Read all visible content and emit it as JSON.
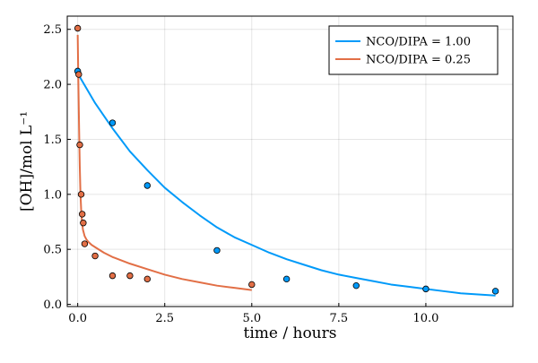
{
  "chart_data": {
    "type": "scatter",
    "xlabel": "time / hours",
    "ylabel": "[OH]/mol L⁻¹",
    "xlim": [
      -0.3,
      12.5
    ],
    "ylim": [
      -0.02,
      2.62
    ],
    "xticks": [
      0.0,
      2.5,
      5.0,
      7.5,
      10.0
    ],
    "xtick_labels": [
      "0.0",
      "2.5",
      "5.0",
      "7.5",
      "10.0"
    ],
    "yticks": [
      0.0,
      0.5,
      1.0,
      1.5,
      2.0,
      2.5
    ],
    "ytick_labels": [
      "0.0",
      "0.5",
      "1.0",
      "1.5",
      "2.0",
      "2.5"
    ],
    "grid": true,
    "legend_position": "top-right",
    "series": [
      {
        "name": "NCO/DIPA = 1.00",
        "color": "#009af9",
        "points": {
          "x": [
            0,
            1,
            2,
            4,
            6,
            8,
            10,
            12
          ],
          "y": [
            2.12,
            1.65,
            1.08,
            0.49,
            0.23,
            0.17,
            0.14,
            0.12
          ]
        },
        "fit": {
          "x": [
            0,
            0.5,
            1,
            1.5,
            2,
            2.5,
            3,
            3.5,
            4,
            4.5,
            5,
            5.5,
            6,
            6.5,
            7,
            7.5,
            8,
            8.5,
            9,
            9.5,
            10,
            10.5,
            11,
            11.5,
            12
          ],
          "y": [
            2.1,
            1.83,
            1.6,
            1.39,
            1.22,
            1.06,
            0.93,
            0.81,
            0.7,
            0.61,
            0.54,
            0.47,
            0.41,
            0.36,
            0.31,
            0.27,
            0.24,
            0.21,
            0.18,
            0.16,
            0.14,
            0.12,
            0.1,
            0.09,
            0.08
          ]
        }
      },
      {
        "name": "NCO/DIPA = 0.25",
        "color": "#e26f46",
        "points": {
          "x": [
            0,
            0.03,
            0.06,
            0.1,
            0.13,
            0.16,
            0.2,
            0.5,
            1.0,
            1.5,
            2.0,
            5.0
          ],
          "y": [
            2.51,
            2.09,
            1.45,
            1.0,
            0.82,
            0.74,
            0.55,
            0.44,
            0.26,
            0.26,
            0.23,
            0.18
          ]
        },
        "fit": {
          "x": [
            0,
            0.02,
            0.04,
            0.06,
            0.08,
            0.1,
            0.12,
            0.15,
            0.2,
            0.25,
            0.3,
            0.4,
            0.5,
            0.75,
            1.0,
            1.5,
            2.0,
            2.5,
            3.0,
            3.5,
            4.0,
            4.5,
            5.0
          ],
          "y": [
            2.45,
            2.0,
            1.6,
            1.25,
            1.0,
            0.86,
            0.76,
            0.68,
            0.62,
            0.59,
            0.57,
            0.54,
            0.52,
            0.47,
            0.43,
            0.37,
            0.32,
            0.27,
            0.23,
            0.2,
            0.17,
            0.15,
            0.13
          ]
        }
      }
    ]
  }
}
